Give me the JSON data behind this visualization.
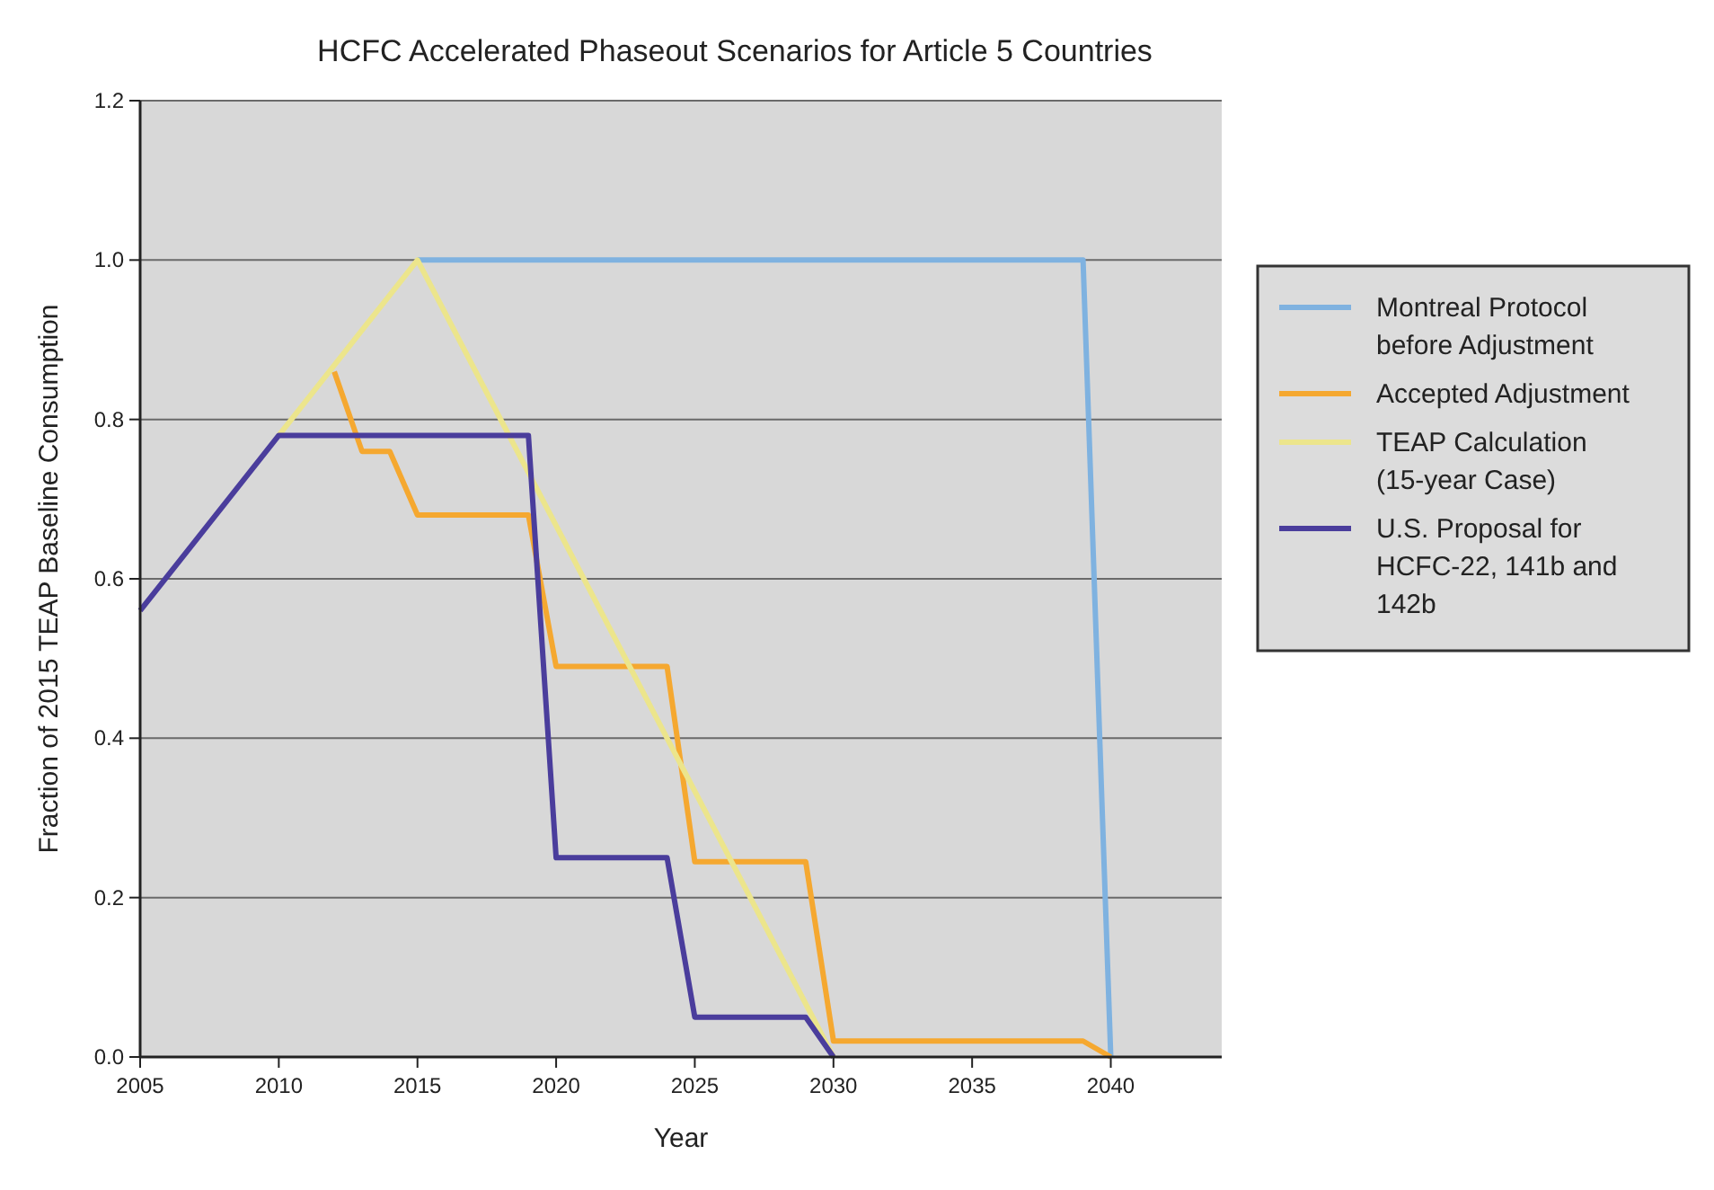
{
  "chart_data": {
    "type": "line",
    "title": "HCFC Accelerated Phaseout Scenarios for Article 5 Countries",
    "xlabel": "Year",
    "ylabel": "Fraction of 2015 TEAP Baseline Consumption",
    "xlim": [
      2005,
      2044
    ],
    "xticks": [
      2005,
      2010,
      2015,
      2020,
      2025,
      2030,
      2035,
      2040
    ],
    "ylim": [
      0,
      1.2
    ],
    "yticks": [
      {
        "value": 0,
        "label": "0.0"
      },
      {
        "value": 0.2,
        "label": "0.2"
      },
      {
        "value": 0.4,
        "label": "0.4"
      },
      {
        "value": 0.6,
        "label": "0.6"
      },
      {
        "value": 0.8,
        "label": "0.8"
      },
      {
        "value": 1,
        "label": "1.0"
      },
      {
        "value": 1.2,
        "label": "1.2"
      }
    ],
    "grid": "y",
    "legend": "right",
    "line_style": "solid",
    "marker": "none",
    "series": [
      {
        "name": "Montreal Protocol before Adjustment",
        "color": "#7fb2e0",
        "x": [
          2015,
          2039,
          2040
        ],
        "values": [
          1.0,
          1.0,
          0
        ]
      },
      {
        "name": "Accepted Adjustment",
        "color": "#f5a830",
        "x": [
          2012,
          2013,
          2014,
          2015,
          2019,
          2020,
          2024,
          2025,
          2029,
          2030,
          2039,
          2040
        ],
        "values": [
          0.86,
          0.76,
          0.76,
          0.68,
          0.68,
          0.49,
          0.49,
          0.245,
          0.245,
          0.02,
          0.02,
          0
        ]
      },
      {
        "name": "TEAP Calculation (15-year Case)",
        "color": "#ece58c",
        "x": [
          2010,
          2015,
          2030
        ],
        "values": [
          0.78,
          1.0,
          0
        ]
      },
      {
        "name": "U.S. Proposal for HCFC-22, 141b and 142b",
        "color": "#4a3d9c",
        "x": [
          2005,
          2010,
          2019,
          2020,
          2024,
          2025,
          2029,
          2030
        ],
        "values": [
          0.56,
          0.78,
          0.78,
          0.25,
          0.25,
          0.05,
          0.05,
          0
        ]
      }
    ]
  }
}
